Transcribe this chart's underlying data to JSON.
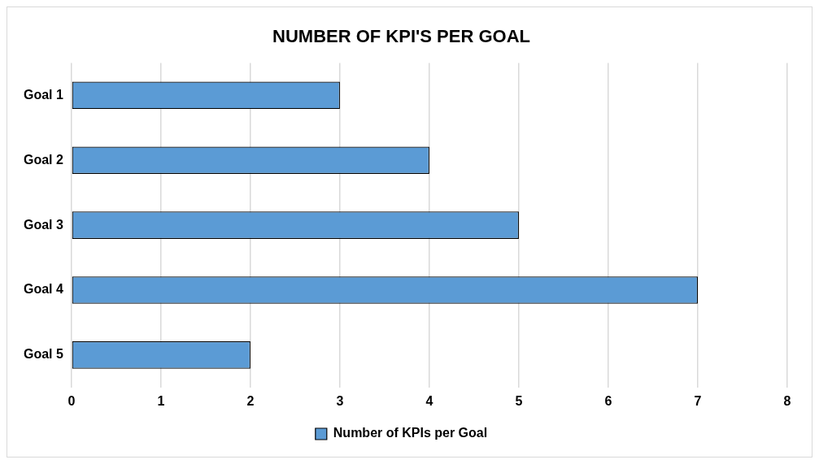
{
  "chart_data": {
    "type": "bar",
    "orientation": "horizontal",
    "title": "NUMBER OF KPI'S PER GOAL",
    "categories": [
      "Goal 1",
      "Goal 2",
      "Goal 3",
      "Goal 4",
      "Goal 5"
    ],
    "series": [
      {
        "name": "Number of KPIs per Goal",
        "color": "#5b9bd5",
        "values": [
          3,
          4,
          5,
          7,
          2
        ]
      }
    ],
    "xlim": [
      0,
      8
    ],
    "xticks": [
      0,
      1,
      2,
      3,
      4,
      5,
      6,
      7,
      8
    ],
    "grid": "x",
    "legend": "bottom"
  }
}
